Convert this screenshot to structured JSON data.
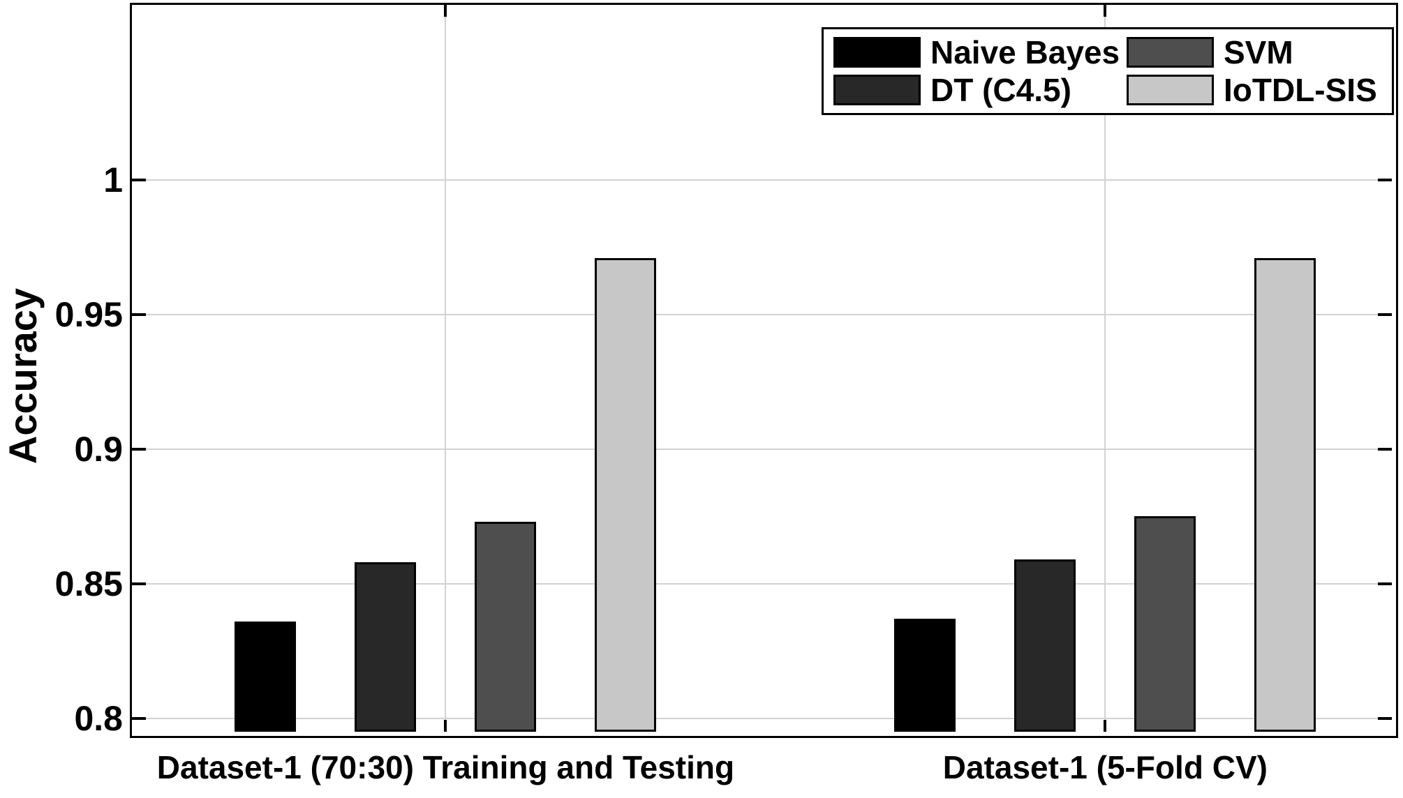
{
  "chart_data": {
    "type": "bar",
    "title": "",
    "xlabel": "",
    "ylabel": "Accuracy",
    "categories": [
      "Dataset-1 (70:30) Training and Testing",
      "Dataset-1 (5-Fold CV)"
    ],
    "series": [
      {
        "name": "Naive Bayes",
        "color": "#000000",
        "values": [
          0.836,
          0.837
        ]
      },
      {
        "name": "DT (C4.5)",
        "color": "#282828",
        "values": [
          0.858,
          0.859
        ]
      },
      {
        "name": "SVM",
        "color": "#4e4e4e",
        "values": [
          0.873,
          0.875
        ]
      },
      {
        "name": "IoTDL-SIS",
        "color": "#c7c7c7",
        "values": [
          0.971,
          0.971
        ]
      }
    ],
    "yticks": {
      "values": [
        0.8,
        0.85,
        0.9,
        0.95,
        1.0
      ],
      "labels": [
        "0.8",
        "0.85",
        "0.9",
        "0.95",
        "1"
      ]
    },
    "ylim": [
      0.795,
      1.065
    ],
    "grid": true,
    "legend_position": "top-right",
    "colors": {
      "grid": "#d2d2d2",
      "axis": "#000000",
      "background": "#ffffff",
      "bar_edge": "#000000"
    }
  }
}
